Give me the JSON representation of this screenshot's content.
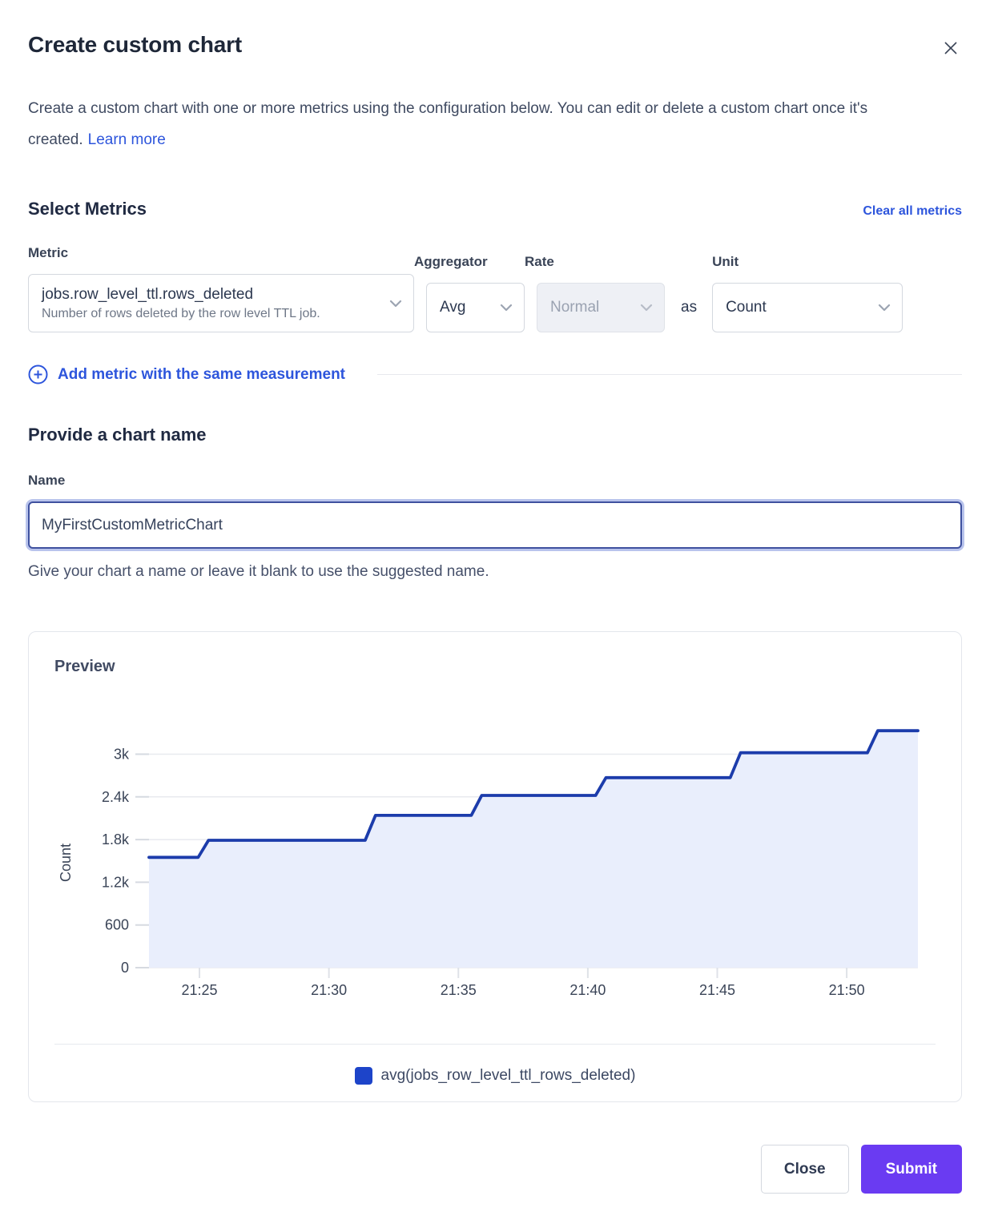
{
  "modal": {
    "title": "Create custom chart",
    "description_before_link": "Create a custom chart with one or more metrics using the configuration below. You can edit or delete a custom chart once it's created.",
    "learn_more_label": "Learn more"
  },
  "metrics_section": {
    "heading": "Select Metrics",
    "clear_all_label": "Clear all metrics",
    "metric_field": {
      "label": "Metric",
      "value": "jobs.row_level_ttl.rows_deleted",
      "description": "Number of rows deleted by the row level TTL job."
    },
    "aggregator_field": {
      "label": "Aggregator",
      "value": "Avg"
    },
    "rate_field": {
      "label": "Rate",
      "value": "Normal",
      "disabled": "true"
    },
    "as_label": "as",
    "unit_field": {
      "label": "Unit",
      "value": "Count"
    },
    "add_metric_label": "Add metric with the same measurement"
  },
  "name_section": {
    "heading": "Provide a chart name",
    "label": "Name",
    "value": "MyFirstCustomMetricChart",
    "helper": "Give your chart a name or leave it blank to use the suggested name."
  },
  "preview": {
    "heading": "Preview"
  },
  "chart_data": {
    "type": "area",
    "title": "Preview",
    "ylabel": "Count",
    "x_unit": "minutes after 21:00",
    "x_range": [
      23.05,
      52.75
    ],
    "x_ticks": [
      {
        "t": 25,
        "label": "21:25"
      },
      {
        "t": 30,
        "label": "21:30"
      },
      {
        "t": 35,
        "label": "21:35"
      },
      {
        "t": 40,
        "label": "21:40"
      },
      {
        "t": 45,
        "label": "21:45"
      },
      {
        "t": 50,
        "label": "21:50"
      }
    ],
    "y_ticks": [
      {
        "v": 0,
        "label": "0"
      },
      {
        "v": 600,
        "label": "600"
      },
      {
        "v": 1200,
        "label": "1.2k"
      },
      {
        "v": 1800,
        "label": "1.8k"
      },
      {
        "v": 2400,
        "label": "2.4k"
      },
      {
        "v": 3000,
        "label": "3k"
      }
    ],
    "grid": true,
    "legend_position": "bottom",
    "series": [
      {
        "name": "avg(jobs_row_level_ttl_rows_deleted)",
        "color": "#1c3cab",
        "fill_color": "#e9eefc",
        "points": [
          [
            23.05,
            1550
          ],
          [
            24.95,
            1550
          ],
          [
            25.35,
            1790
          ],
          [
            31.4,
            1790
          ],
          [
            31.8,
            2140
          ],
          [
            35.5,
            2140
          ],
          [
            35.9,
            2420
          ],
          [
            40.3,
            2420
          ],
          [
            40.7,
            2670
          ],
          [
            45.5,
            2670
          ],
          [
            45.9,
            3020
          ],
          [
            50.8,
            3020
          ],
          [
            51.2,
            3330
          ],
          [
            52.75,
            3330
          ]
        ]
      }
    ],
    "legend": [
      {
        "label": "avg(jobs_row_level_ttl_rows_deleted)",
        "color": "#1d44c9"
      }
    ]
  },
  "footer": {
    "close_label": "Close",
    "submit_label": "Submit"
  },
  "colors": {
    "link_blue": "#2d55dc",
    "accent_purple": "#6a3bf2",
    "line_blue": "#1c3cab",
    "area_fill": "#e9eefc",
    "legend_swatch": "#1d44c9"
  }
}
